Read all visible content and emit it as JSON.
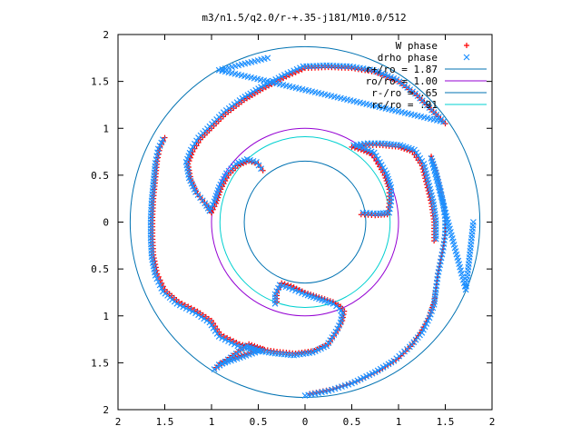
{
  "chart_data": {
    "type": "scatter",
    "title": "m3/n1.5/q2.0/r-+.35-j181/M10.0/512",
    "xlabel": "",
    "ylabel": "",
    "xlim": [
      -2,
      2
    ],
    "ylim": [
      -2,
      2
    ],
    "x_ticks": [
      "2",
      "1.5",
      "1",
      "0.5",
      "0",
      "0.5",
      "1",
      "1.5",
      "2"
    ],
    "y_ticks": [
      "2",
      "1.5",
      "1",
      "0.5",
      "0",
      "0.5",
      "1",
      "1.5",
      "2"
    ],
    "grid": false,
    "legend_position": "top-right",
    "legend": [
      {
        "label": "W phase",
        "kind": "marker",
        "marker": "plus",
        "color": "#ff0000"
      },
      {
        "label": "drho phase",
        "kind": "marker",
        "marker": "cross",
        "color": "#1e90ff"
      },
      {
        "label": "r+/ro = 1.87",
        "kind": "line",
        "color": "#0072b2"
      },
      {
        "label": "ro/ro = 1.00",
        "kind": "line",
        "color": "#9400d3"
      },
      {
        "label": "r-/ro = .65",
        "kind": "line",
        "color": "#0072b2"
      },
      {
        "label": "rc/ro = .91",
        "kind": "line",
        "color": "#00d0d0"
      }
    ],
    "circles": [
      {
        "name": "r+/ro = 1.87",
        "radius": 1.87,
        "color": "#0072b2"
      },
      {
        "name": "ro/ro = 1.00",
        "radius": 1.0,
        "color": "#9400d3"
      },
      {
        "name": "r-/ro = .65",
        "radius": 0.65,
        "color": "#0072b2"
      },
      {
        "name": "rc/ro = .91",
        "radius": 0.91,
        "color": "#00d0d0"
      }
    ],
    "series": [
      {
        "name": "W phase",
        "marker": "plus",
        "color": "#ff0000",
        "arms": [
          [
            [
              0.05,
              -1.83
            ],
            [
              0.3,
              -1.78
            ],
            [
              0.55,
              -1.7
            ],
            [
              0.8,
              -1.58
            ],
            [
              1.0,
              -1.45
            ],
            [
              1.15,
              -1.3
            ],
            [
              1.25,
              -1.15
            ],
            [
              1.33,
              -1.0
            ],
            [
              1.38,
              -0.85
            ],
            [
              1.4,
              -0.7
            ],
            [
              1.42,
              -0.55
            ],
            [
              1.45,
              -0.4
            ],
            [
              1.48,
              -0.25
            ],
            [
              1.5,
              -0.1
            ],
            [
              1.5,
              0.05
            ],
            [
              1.48,
              0.2
            ],
            [
              1.45,
              0.35
            ],
            [
              1.4,
              0.55
            ],
            [
              1.35,
              0.7
            ]
          ],
          [
            [
              -0.3,
              -0.85
            ],
            [
              -0.3,
              -0.75
            ],
            [
              -0.25,
              -0.65
            ],
            [
              -0.15,
              -0.68
            ],
            [
              0.0,
              -0.75
            ],
            [
              0.15,
              -0.8
            ],
            [
              0.3,
              -0.85
            ],
            [
              0.38,
              -0.9
            ],
            [
              0.42,
              -0.95
            ],
            [
              0.4,
              -1.05
            ],
            [
              0.35,
              -1.15
            ],
            [
              0.25,
              -1.3
            ],
            [
              0.1,
              -1.37
            ],
            [
              -0.1,
              -1.4
            ],
            [
              -0.3,
              -1.38
            ],
            [
              -0.5,
              -1.35
            ],
            [
              -0.7,
              -1.3
            ],
            [
              -0.9,
              -1.2
            ],
            [
              -1.0,
              -1.05
            ],
            [
              -1.15,
              -0.95
            ],
            [
              -1.35,
              -0.85
            ],
            [
              -1.5,
              -0.72
            ],
            [
              -1.58,
              -0.55
            ],
            [
              -1.62,
              -0.35
            ],
            [
              -1.63,
              -0.15
            ],
            [
              -1.63,
              0.05
            ],
            [
              -1.62,
              0.25
            ],
            [
              -1.6,
              0.45
            ],
            [
              -1.58,
              0.65
            ],
            [
              -1.55,
              0.8
            ],
            [
              -1.5,
              0.9
            ]
          ],
          [
            [
              -1.0,
              0.1
            ],
            [
              -1.05,
              0.18
            ],
            [
              -1.15,
              0.3
            ],
            [
              -1.22,
              0.45
            ],
            [
              -1.25,
              0.62
            ],
            [
              -1.2,
              0.75
            ],
            [
              -1.12,
              0.88
            ],
            [
              -1.0,
              1.0
            ],
            [
              -0.85,
              1.15
            ],
            [
              -0.65,
              1.3
            ],
            [
              -0.45,
              1.42
            ],
            [
              -0.2,
              1.55
            ],
            [
              0.0,
              1.64
            ],
            [
              0.25,
              1.65
            ],
            [
              0.5,
              1.64
            ],
            [
              0.75,
              1.6
            ],
            [
              1.0,
              1.5
            ],
            [
              1.2,
              1.35
            ],
            [
              1.35,
              1.2
            ],
            [
              1.5,
              1.05
            ]
          ],
          [
            [
              0.6,
              0.08
            ],
            [
              0.75,
              0.07
            ],
            [
              0.88,
              0.08
            ],
            [
              0.9,
              0.2
            ],
            [
              0.9,
              0.35
            ],
            [
              0.85,
              0.5
            ],
            [
              0.78,
              0.62
            ],
            [
              0.72,
              0.72
            ],
            [
              0.6,
              0.77
            ],
            [
              0.5,
              0.8
            ],
            [
              0.65,
              0.82
            ],
            [
              0.8,
              0.82
            ],
            [
              1.0,
              0.8
            ],
            [
              1.15,
              0.75
            ],
            [
              1.25,
              0.6
            ],
            [
              1.3,
              0.4
            ],
            [
              1.35,
              0.2
            ],
            [
              1.38,
              0.0
            ],
            [
              1.38,
              -0.2
            ]
          ],
          [
            [
              -1.0,
              0.1
            ],
            [
              -0.95,
              0.2
            ],
            [
              -0.9,
              0.35
            ],
            [
              -0.82,
              0.5
            ],
            [
              -0.72,
              0.6
            ],
            [
              -0.6,
              0.65
            ],
            [
              -0.5,
              0.62
            ],
            [
              -0.45,
              0.55
            ]
          ],
          [
            [
              -0.95,
              -1.55
            ],
            [
              -0.6,
              -1.3
            ],
            [
              -0.45,
              -1.35
            ],
            [
              -0.9,
              -1.5
            ]
          ]
        ]
      },
      {
        "name": "drho phase",
        "marker": "cross",
        "color": "#1e90ff",
        "arms": [
          [
            [
              0.0,
              -1.85
            ],
            [
              0.25,
              -1.8
            ],
            [
              0.5,
              -1.72
            ],
            [
              0.75,
              -1.6
            ],
            [
              0.95,
              -1.48
            ],
            [
              1.12,
              -1.33
            ],
            [
              1.25,
              -1.18
            ],
            [
              1.33,
              -1.02
            ],
            [
              1.38,
              -0.88
            ],
            [
              1.4,
              -0.72
            ],
            [
              1.42,
              -0.57
            ],
            [
              1.45,
              -0.42
            ],
            [
              1.48,
              -0.27
            ],
            [
              1.5,
              -0.12
            ],
            [
              1.5,
              0.03
            ],
            [
              1.48,
              0.18
            ],
            [
              1.45,
              0.33
            ],
            [
              1.4,
              0.53
            ],
            [
              1.35,
              0.68
            ],
            [
              1.72,
              -0.72
            ],
            [
              1.8,
              0.0
            ]
          ],
          [
            [
              -0.32,
              -0.87
            ],
            [
              -0.32,
              -0.77
            ],
            [
              -0.27,
              -0.67
            ],
            [
              -0.17,
              -0.7
            ],
            [
              0.0,
              -0.77
            ],
            [
              0.15,
              -0.82
            ],
            [
              0.3,
              -0.87
            ],
            [
              0.37,
              -0.92
            ],
            [
              0.4,
              -0.97
            ],
            [
              0.38,
              -1.07
            ],
            [
              0.33,
              -1.17
            ],
            [
              0.23,
              -1.32
            ],
            [
              0.08,
              -1.39
            ],
            [
              -0.12,
              -1.42
            ],
            [
              -0.32,
              -1.4
            ],
            [
              -0.52,
              -1.37
            ],
            [
              -0.72,
              -1.32
            ],
            [
              -0.92,
              -1.22
            ],
            [
              -1.02,
              -1.07
            ],
            [
              -1.17,
              -0.97
            ],
            [
              -1.37,
              -0.87
            ],
            [
              -1.52,
              -0.74
            ],
            [
              -1.6,
              -0.57
            ],
            [
              -1.64,
              -0.37
            ],
            [
              -1.65,
              -0.17
            ],
            [
              -1.65,
              0.03
            ],
            [
              -1.64,
              0.23
            ],
            [
              -1.62,
              0.43
            ],
            [
              -1.6,
              0.63
            ],
            [
              -1.57,
              0.78
            ],
            [
              -1.52,
              0.88
            ]
          ],
          [
            [
              -1.02,
              0.12
            ],
            [
              -1.07,
              0.2
            ],
            [
              -1.17,
              0.32
            ],
            [
              -1.24,
              0.47
            ],
            [
              -1.27,
              0.64
            ],
            [
              -1.22,
              0.77
            ],
            [
              -1.14,
              0.9
            ],
            [
              -1.02,
              1.02
            ],
            [
              -0.87,
              1.17
            ],
            [
              -0.67,
              1.32
            ],
            [
              -0.47,
              1.44
            ],
            [
              -0.22,
              1.57
            ],
            [
              -0.02,
              1.66
            ],
            [
              0.23,
              1.67
            ],
            [
              0.48,
              1.66
            ],
            [
              0.73,
              1.62
            ],
            [
              0.98,
              1.52
            ],
            [
              1.18,
              1.37
            ],
            [
              1.33,
              1.22
            ],
            [
              1.48,
              1.07
            ],
            [
              -0.92,
              1.62
            ],
            [
              -0.4,
              1.75
            ]
          ],
          [
            [
              0.62,
              0.1
            ],
            [
              0.77,
              0.09
            ],
            [
              0.9,
              0.1
            ],
            [
              0.92,
              0.22
            ],
            [
              0.92,
              0.37
            ],
            [
              0.87,
              0.52
            ],
            [
              0.8,
              0.64
            ],
            [
              0.74,
              0.74
            ],
            [
              0.62,
              0.79
            ],
            [
              0.52,
              0.82
            ],
            [
              0.67,
              0.84
            ],
            [
              0.82,
              0.84
            ],
            [
              1.02,
              0.82
            ],
            [
              1.17,
              0.77
            ],
            [
              1.27,
              0.62
            ],
            [
              1.32,
              0.42
            ],
            [
              1.37,
              0.22
            ],
            [
              1.4,
              0.02
            ],
            [
              1.4,
              -0.18
            ]
          ],
          [
            [
              -1.02,
              0.12
            ],
            [
              -0.97,
              0.22
            ],
            [
              -0.92,
              0.37
            ],
            [
              -0.84,
              0.52
            ],
            [
              -0.74,
              0.62
            ],
            [
              -0.62,
              0.67
            ],
            [
              -0.52,
              0.64
            ],
            [
              -0.47,
              0.57
            ]
          ],
          [
            [
              -0.97,
              -1.57
            ],
            [
              -0.62,
              -1.32
            ],
            [
              -0.47,
              -1.37
            ],
            [
              -0.92,
              -1.52
            ]
          ]
        ]
      }
    ]
  }
}
